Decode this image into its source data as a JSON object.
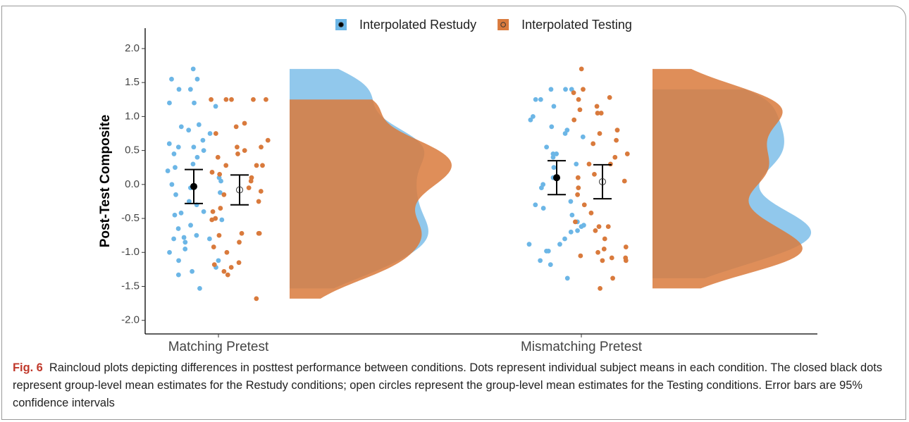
{
  "chart_data": {
    "type": "raincloud",
    "ylabel": "Post-Test Composite",
    "categories": [
      "Matching Pretest",
      "Mismatching Pretest"
    ],
    "ylim": [
      -2.2,
      2.3
    ],
    "yticks": [
      {
        "value": -2,
        "label": "-2.0"
      },
      {
        "value": -1.5,
        "label": "-1.5"
      },
      {
        "value": -1,
        "label": "-1.0"
      },
      {
        "value": -0.5,
        "label": "-0.5"
      },
      {
        "value": 0,
        "label": "0.0"
      },
      {
        "value": 0.5,
        "label": "0.5"
      },
      {
        "value": 1,
        "label": "1.0"
      },
      {
        "value": 1.5,
        "label": "1.5"
      },
      {
        "value": 2,
        "label": "2.0"
      }
    ],
    "legend": "top",
    "series": [
      {
        "name": "Interpolated Restudy",
        "color": "#6cb6e6",
        "mean_marker": "filled",
        "values": [
          [
            1.7,
            1.55,
            1.55,
            1.4,
            1.4,
            1.2,
            1.2,
            1.15,
            0.88,
            0.8,
            0.85,
            0.75,
            0.65,
            0.6,
            0.55,
            0.55,
            0.5,
            0.45,
            0.4,
            0.3,
            0.25,
            0.2,
            0.1,
            0.05,
            0.0,
            -0.05,
            -0.12,
            -0.15,
            -0.25,
            -0.3,
            -0.4,
            -0.42,
            -0.45,
            -0.52,
            -0.6,
            -0.65,
            -0.75,
            -0.78,
            -0.8,
            -0.8,
            -0.85,
            -0.95,
            -1.0,
            -1.12,
            -1.12,
            -1.22,
            -1.28,
            -1.33,
            -1.53
          ],
          [
            1.4,
            1.4,
            1.4,
            1.25,
            1.25,
            1.15,
            1.0,
            0.95,
            0.85,
            0.8,
            0.75,
            0.7,
            0.55,
            0.45,
            0.45,
            0.4,
            0.3,
            0.25,
            0.1,
            0.0,
            -0.05,
            -0.25,
            -0.3,
            -0.35,
            -0.45,
            -0.55,
            -0.6,
            -0.62,
            -0.68,
            -0.7,
            -0.8,
            -0.88,
            -0.88,
            -0.98,
            -0.98,
            -1.12,
            -1.18,
            -1.38
          ]
        ],
        "mean": [
          -0.03,
          0.1
        ],
        "error": [
          0.25,
          0.25
        ]
      },
      {
        "name": "Interpolated Testing",
        "color": "#d97a3c",
        "mean_marker": "open",
        "values": [
          [
            1.25,
            1.25,
            1.25,
            1.25,
            1.25,
            0.9,
            0.85,
            0.75,
            0.65,
            0.55,
            0.55,
            0.5,
            0.45,
            0.4,
            0.28,
            0.28,
            0.28,
            0.18,
            0.15,
            0.1,
            0.05,
            -0.05,
            -0.1,
            -0.15,
            -0.25,
            -0.35,
            -0.4,
            -0.5,
            -0.52,
            -0.72,
            -0.72,
            -0.72,
            -0.75,
            -0.85,
            -0.92,
            -1.0,
            -1.15,
            -1.18,
            -1.22,
            -1.28,
            -1.33,
            -1.68
          ],
          [
            1.7,
            1.4,
            1.35,
            1.28,
            1.25,
            1.15,
            1.1,
            1.05,
            1.05,
            0.95,
            0.8,
            0.75,
            0.65,
            0.6,
            0.45,
            0.4,
            0.3,
            0.3,
            0.15,
            0.1,
            0.05,
            -0.05,
            -0.15,
            -0.3,
            -0.42,
            -0.55,
            -0.62,
            -0.62,
            -0.68,
            -0.8,
            -0.92,
            -0.95,
            -1.0,
            -1.05,
            -1.08,
            -1.08,
            -1.12,
            -1.12,
            -1.38,
            -1.53
          ]
        ],
        "mean": [
          -0.08,
          0.04
        ],
        "error": [
          0.22,
          0.25
        ]
      }
    ],
    "caption_label": "Fig. 6",
    "caption": "Raincloud plots depicting differences in posttest performance between conditions. Dots represent individual subject means in each condition. The closed black dots represent group-level mean estimates for the Restudy conditions; open circles represent the group-level mean estimates for the Testing conditions. Error bars are 95% confidence intervals"
  }
}
